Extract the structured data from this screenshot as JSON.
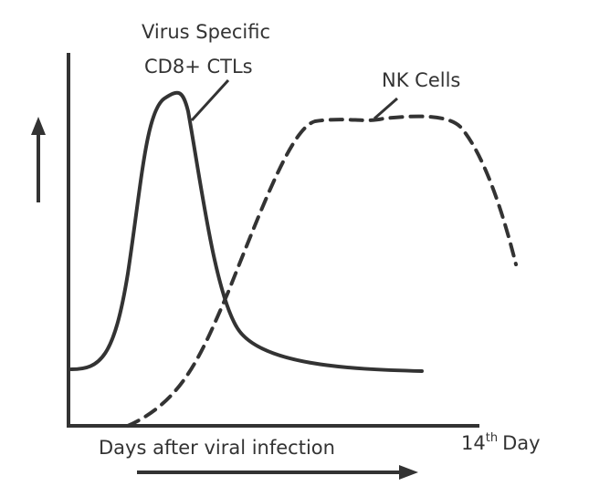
{
  "labels": {
    "ctl_line1": "Virus Specific",
    "ctl_line2": "CD8+ CTLs",
    "nk": "NK Cells"
  },
  "x_axis": {
    "label": "Days after viral infection",
    "end": {
      "number": "14",
      "suffix": "th",
      "word": "Day"
    }
  }
}
